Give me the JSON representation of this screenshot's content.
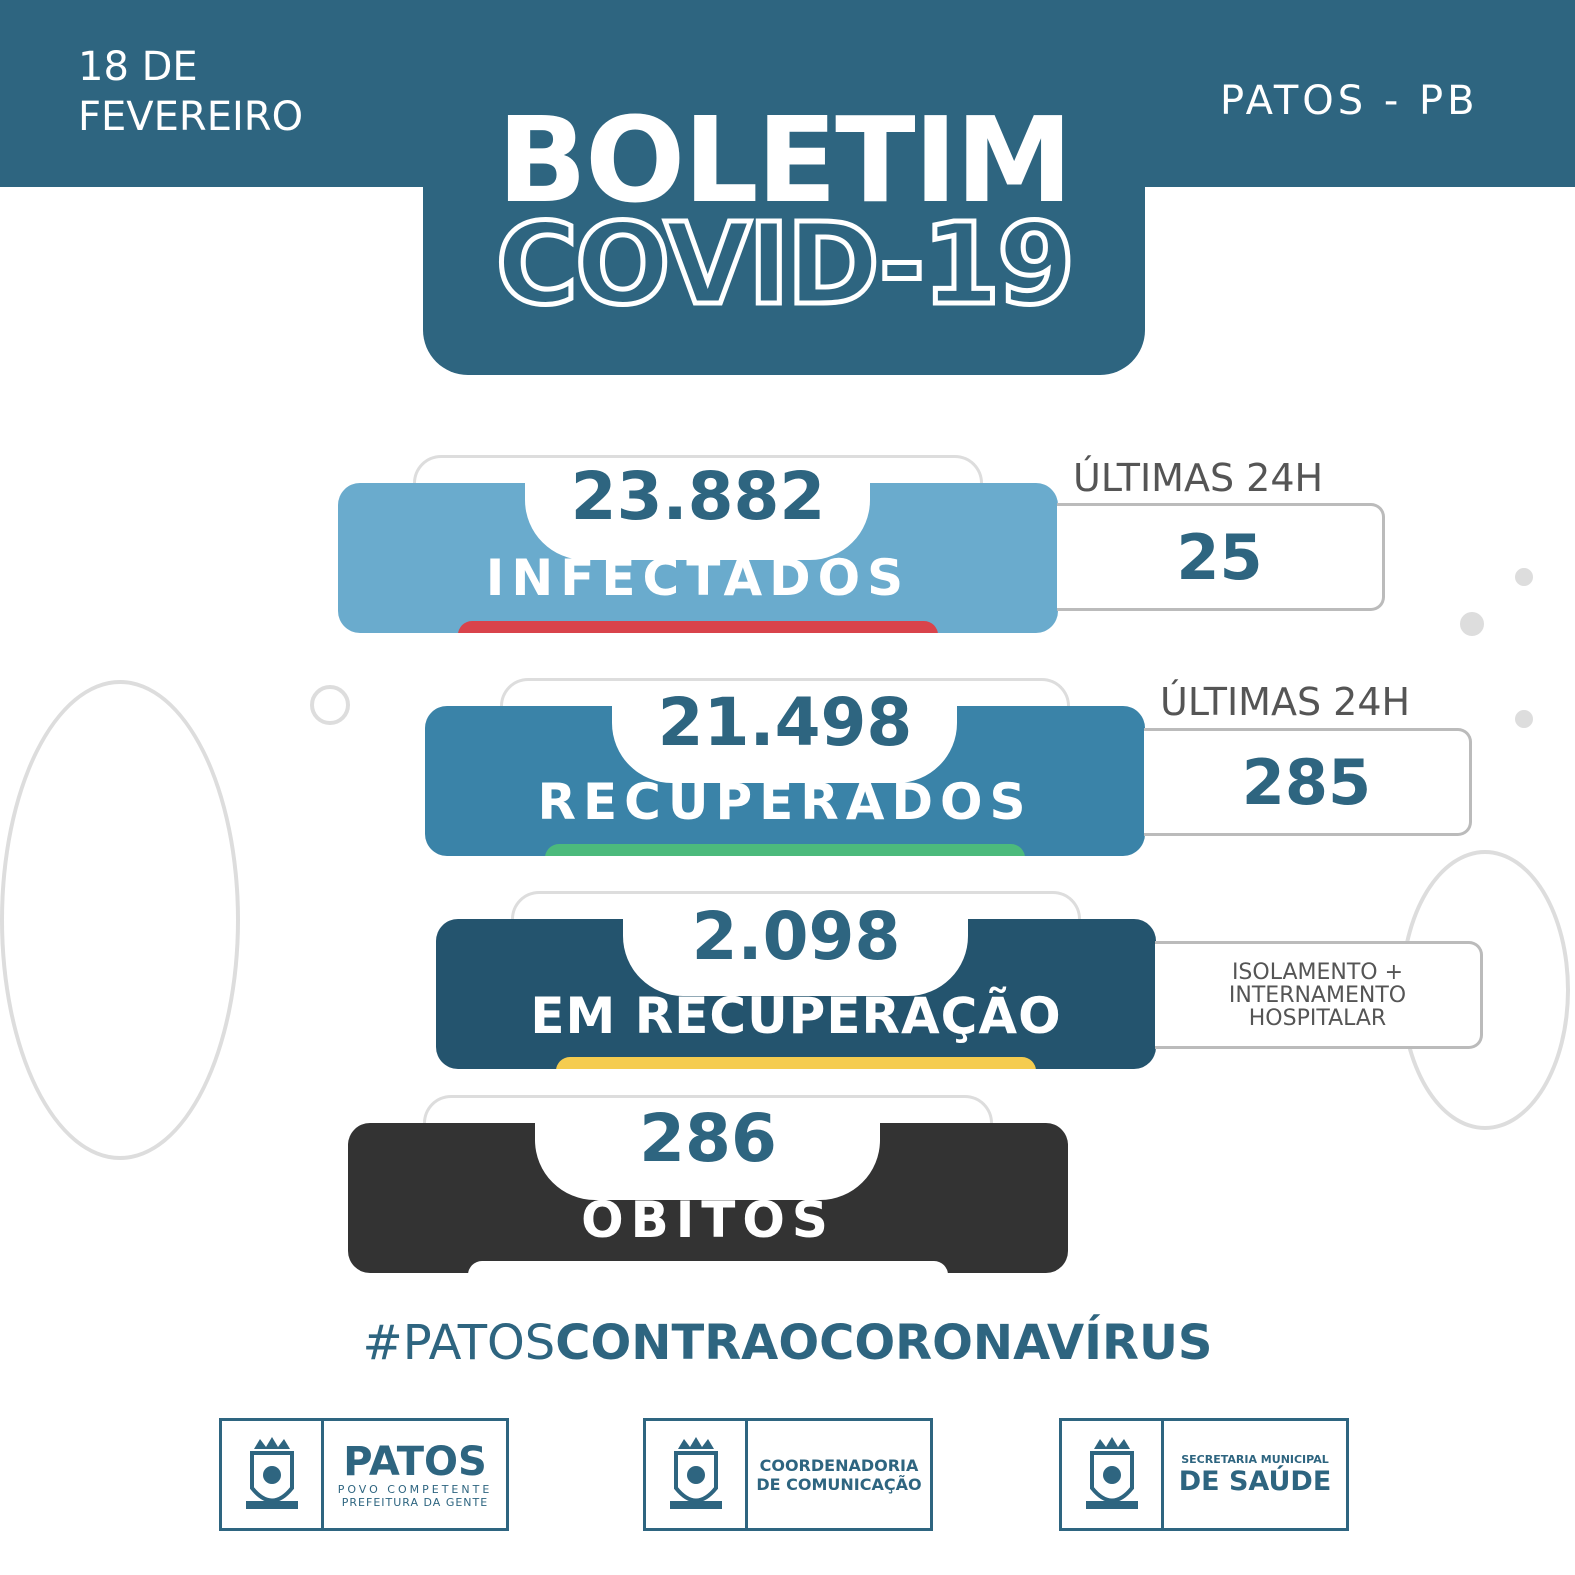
{
  "header": {
    "date_line1": "18 DE",
    "date_line2": "FEVEREIRO",
    "location": "PATOS - PB",
    "title_line1": "BOLETIM",
    "title_line2": "COVID-19"
  },
  "stats": [
    {
      "value": "23.882",
      "label": "INFECTADOS",
      "color": "#6aabcd",
      "bar_color": "#d9434b",
      "side_label": "ÚLTIMAS 24H",
      "side_value": "25"
    },
    {
      "value": "21.498",
      "label": "RECUPERADOS",
      "color": "#3a83a8",
      "bar_color": "#4cba7c",
      "side_label": "ÚLTIMAS 24H",
      "side_value": "285"
    },
    {
      "value": "2.098",
      "label": "EM RECUPERAÇÃO",
      "color": "#24546e",
      "bar_color": "#f5cc4f",
      "side_note_1": "ISOLAMENTO +",
      "side_note_2": "INTERNAMENTO",
      "side_note_3": "HOSPITALAR"
    },
    {
      "value": "286",
      "label": "ÓBITOS",
      "color": "#333333"
    }
  ],
  "hashtag": {
    "part1": "#PATOS",
    "part2": "CONTRAOCORONAVÍRUS"
  },
  "logos": [
    {
      "title": "PATOS",
      "sub1": "POVO COMPETENTE",
      "sub2": "PREFEITURA DA GENTE"
    },
    {
      "line1": "COORDENADORIA",
      "line2": "DE COMUNICAÇÃO"
    },
    {
      "line1": "SECRETARIA MUNICIPAL",
      "line2": "DE SAÚDE"
    }
  ]
}
